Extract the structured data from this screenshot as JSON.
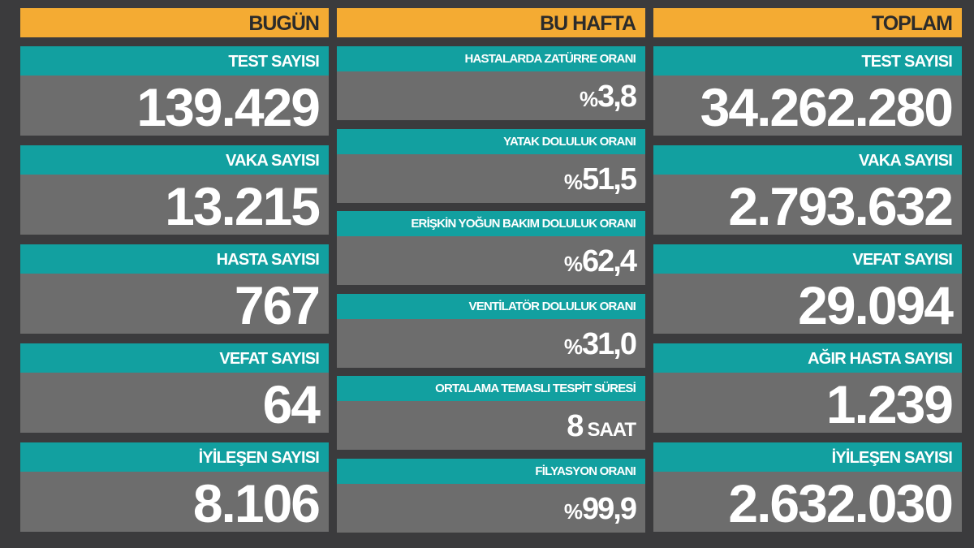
{
  "today": {
    "title": "BUGÜN",
    "items": [
      {
        "label": "TEST SAYISI",
        "value": "139.429"
      },
      {
        "label": "VAKA SAYISI",
        "value": "13.215"
      },
      {
        "label": "HASTA SAYISI",
        "value": "767"
      },
      {
        "label": "VEFAT SAYISI",
        "value": "64"
      },
      {
        "label": "İYİLEŞEN SAYISI",
        "value": "8.106"
      }
    ]
  },
  "week": {
    "title": "BU HAFTA",
    "items": [
      {
        "label": "HASTALARDA ZATÜRRE ORANI",
        "prefix": "%",
        "value": "3,8"
      },
      {
        "label": "YATAK DOLULUK ORANI",
        "prefix": "%",
        "value": "51,5"
      },
      {
        "label": "ERİŞKİN YOĞUN BAKIM DOLULUK ORANI",
        "prefix": "%",
        "value": "62,4"
      },
      {
        "label": "VENTİLATÖR DOLULUK ORANI",
        "prefix": "%",
        "value": "31,0"
      },
      {
        "label": "ORTALAMA TEMASLI TESPİT SÜRESİ",
        "value": "8",
        "unit": "SAAT"
      },
      {
        "label": "FİLYASYON ORANI",
        "prefix": "%",
        "value": "99,9"
      }
    ]
  },
  "total": {
    "title": "TOPLAM",
    "items": [
      {
        "label": "TEST SAYISI",
        "value": "34.262.280"
      },
      {
        "label": "VAKA SAYISI",
        "value": "2.793.632"
      },
      {
        "label": "VEFAT SAYISI",
        "value": "29.094"
      },
      {
        "label": "AĞIR HASTA SAYISI",
        "value": "1.239"
      },
      {
        "label": "İYİLEŞEN SAYISI",
        "value": "2.632.030"
      }
    ]
  },
  "colors": {
    "background": "#3b3b3d",
    "header": "#f4ab33",
    "label": "#12a0a0",
    "value": "#6d6d6d"
  }
}
